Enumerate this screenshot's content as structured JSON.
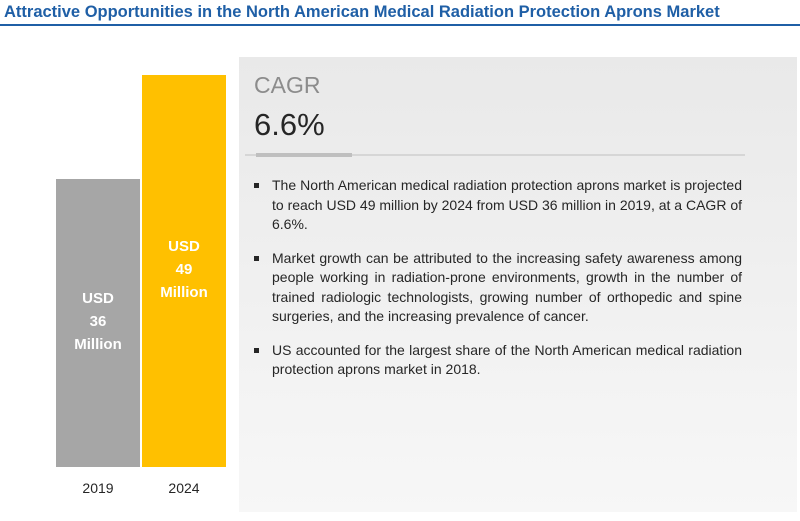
{
  "chart_data": {
    "type": "bar",
    "title": "Attractive Opportunities in the North American Medical Radiation Protection Aprons Market",
    "categories": [
      "2019",
      "2024"
    ],
    "values": [
      36,
      49
    ],
    "value_labels": [
      "USD 36 Million",
      "USD 49 Million"
    ],
    "colors": [
      "#a6a6a6",
      "#ffc000"
    ],
    "cagr_label": "CAGR",
    "cagr_value": "6.6%",
    "bullets": [
      "The North American medical radiation protection aprons market is projected to reach USD 49 million by 2024 from USD 36 million in 2019, at a CAGR of 6.6%.",
      "Market growth can be attributed to the increasing safety awareness among people working in radiation-prone environments, growth in the number of trained radiologic technologists, growing number of orthopedic and spine surgeries, and the increasing prevalence of cancer.",
      "US accounted for the largest share of the North American medical radiation protection aprons market in 2018."
    ]
  }
}
